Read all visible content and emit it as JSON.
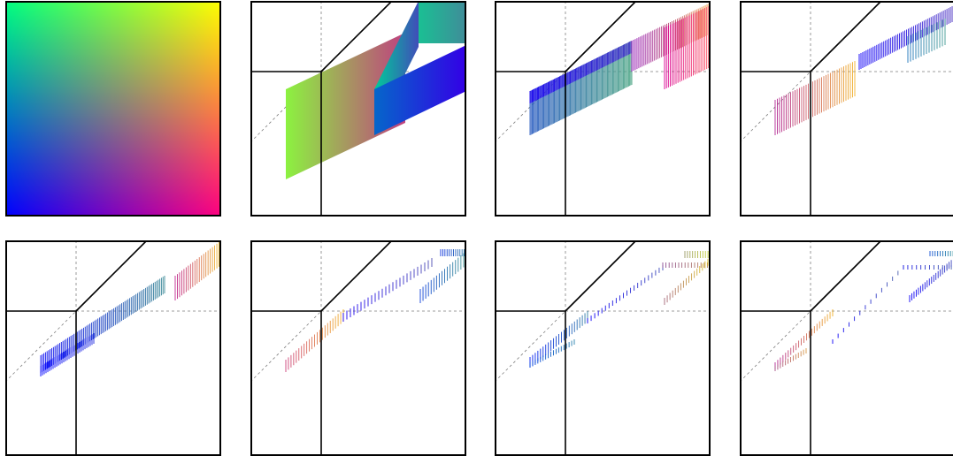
{
  "figure": {
    "description_visible_text": "",
    "colors": {
      "top_left": "#00ff80",
      "top_right": "#ffff00",
      "bottom_left": "#0000ff",
      "bottom_right": "#ff0080",
      "frame": "#000000",
      "guide_solid": "#000000",
      "guide_dashed": "#7f7f7f"
    },
    "panels": [
      {
        "kind": "colormap"
      },
      {
        "kind": "iteration",
        "step": 1,
        "rendering": "solid"
      },
      {
        "kind": "iteration",
        "step": 2,
        "rendering": "dense-hatch"
      },
      {
        "kind": "iteration",
        "step": 3,
        "rendering": "hatch"
      },
      {
        "kind": "iteration",
        "step": 4,
        "rendering": "hatch"
      },
      {
        "kind": "iteration",
        "step": 5,
        "rendering": "sparse-hatch"
      },
      {
        "kind": "iteration",
        "step": 6,
        "rendering": "sparse-hatch"
      },
      {
        "kind": "iteration",
        "step": 7,
        "rendering": "sparse-hatch"
      }
    ]
  }
}
